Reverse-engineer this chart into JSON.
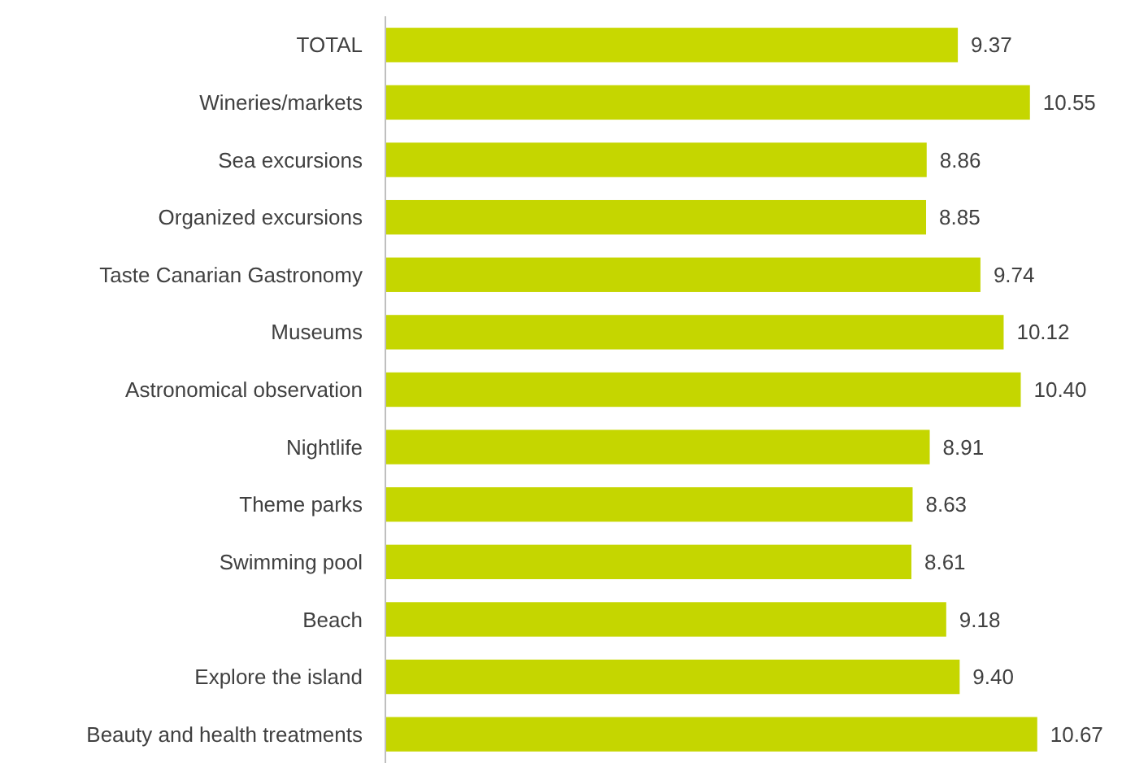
{
  "chart_data": {
    "type": "bar",
    "orientation": "horizontal",
    "categories": [
      "TOTAL",
      "Wineries/markets",
      "Sea excursions",
      "Organized excursions",
      "Taste Canarian Gastronomy",
      "Museums",
      "Astronomical observation",
      "Nightlife",
      "Theme parks",
      "Swimming pool",
      "Beach",
      "Explore the island",
      "Beauty and health treatments"
    ],
    "values": [
      9.37,
      10.55,
      8.86,
      8.85,
      9.74,
      10.12,
      10.4,
      8.91,
      8.63,
      8.61,
      9.18,
      9.4,
      10.67
    ],
    "colors": [
      "#c8d800",
      "#c5d600",
      "#c5d600",
      "#c5d600",
      "#c5d600",
      "#c5d600",
      "#c5d600",
      "#c5d600",
      "#c5d600",
      "#c5d600",
      "#c5d600",
      "#c5d600",
      "#c5d600"
    ],
    "value_labels": [
      "9.37",
      "10.55",
      "8.86",
      "8.85",
      "9.74",
      "10.12",
      "10.40",
      "8.91",
      "8.63",
      "8.61",
      "9.18",
      "9.40",
      "10.67"
    ],
    "tick_labels": "y"
  }
}
